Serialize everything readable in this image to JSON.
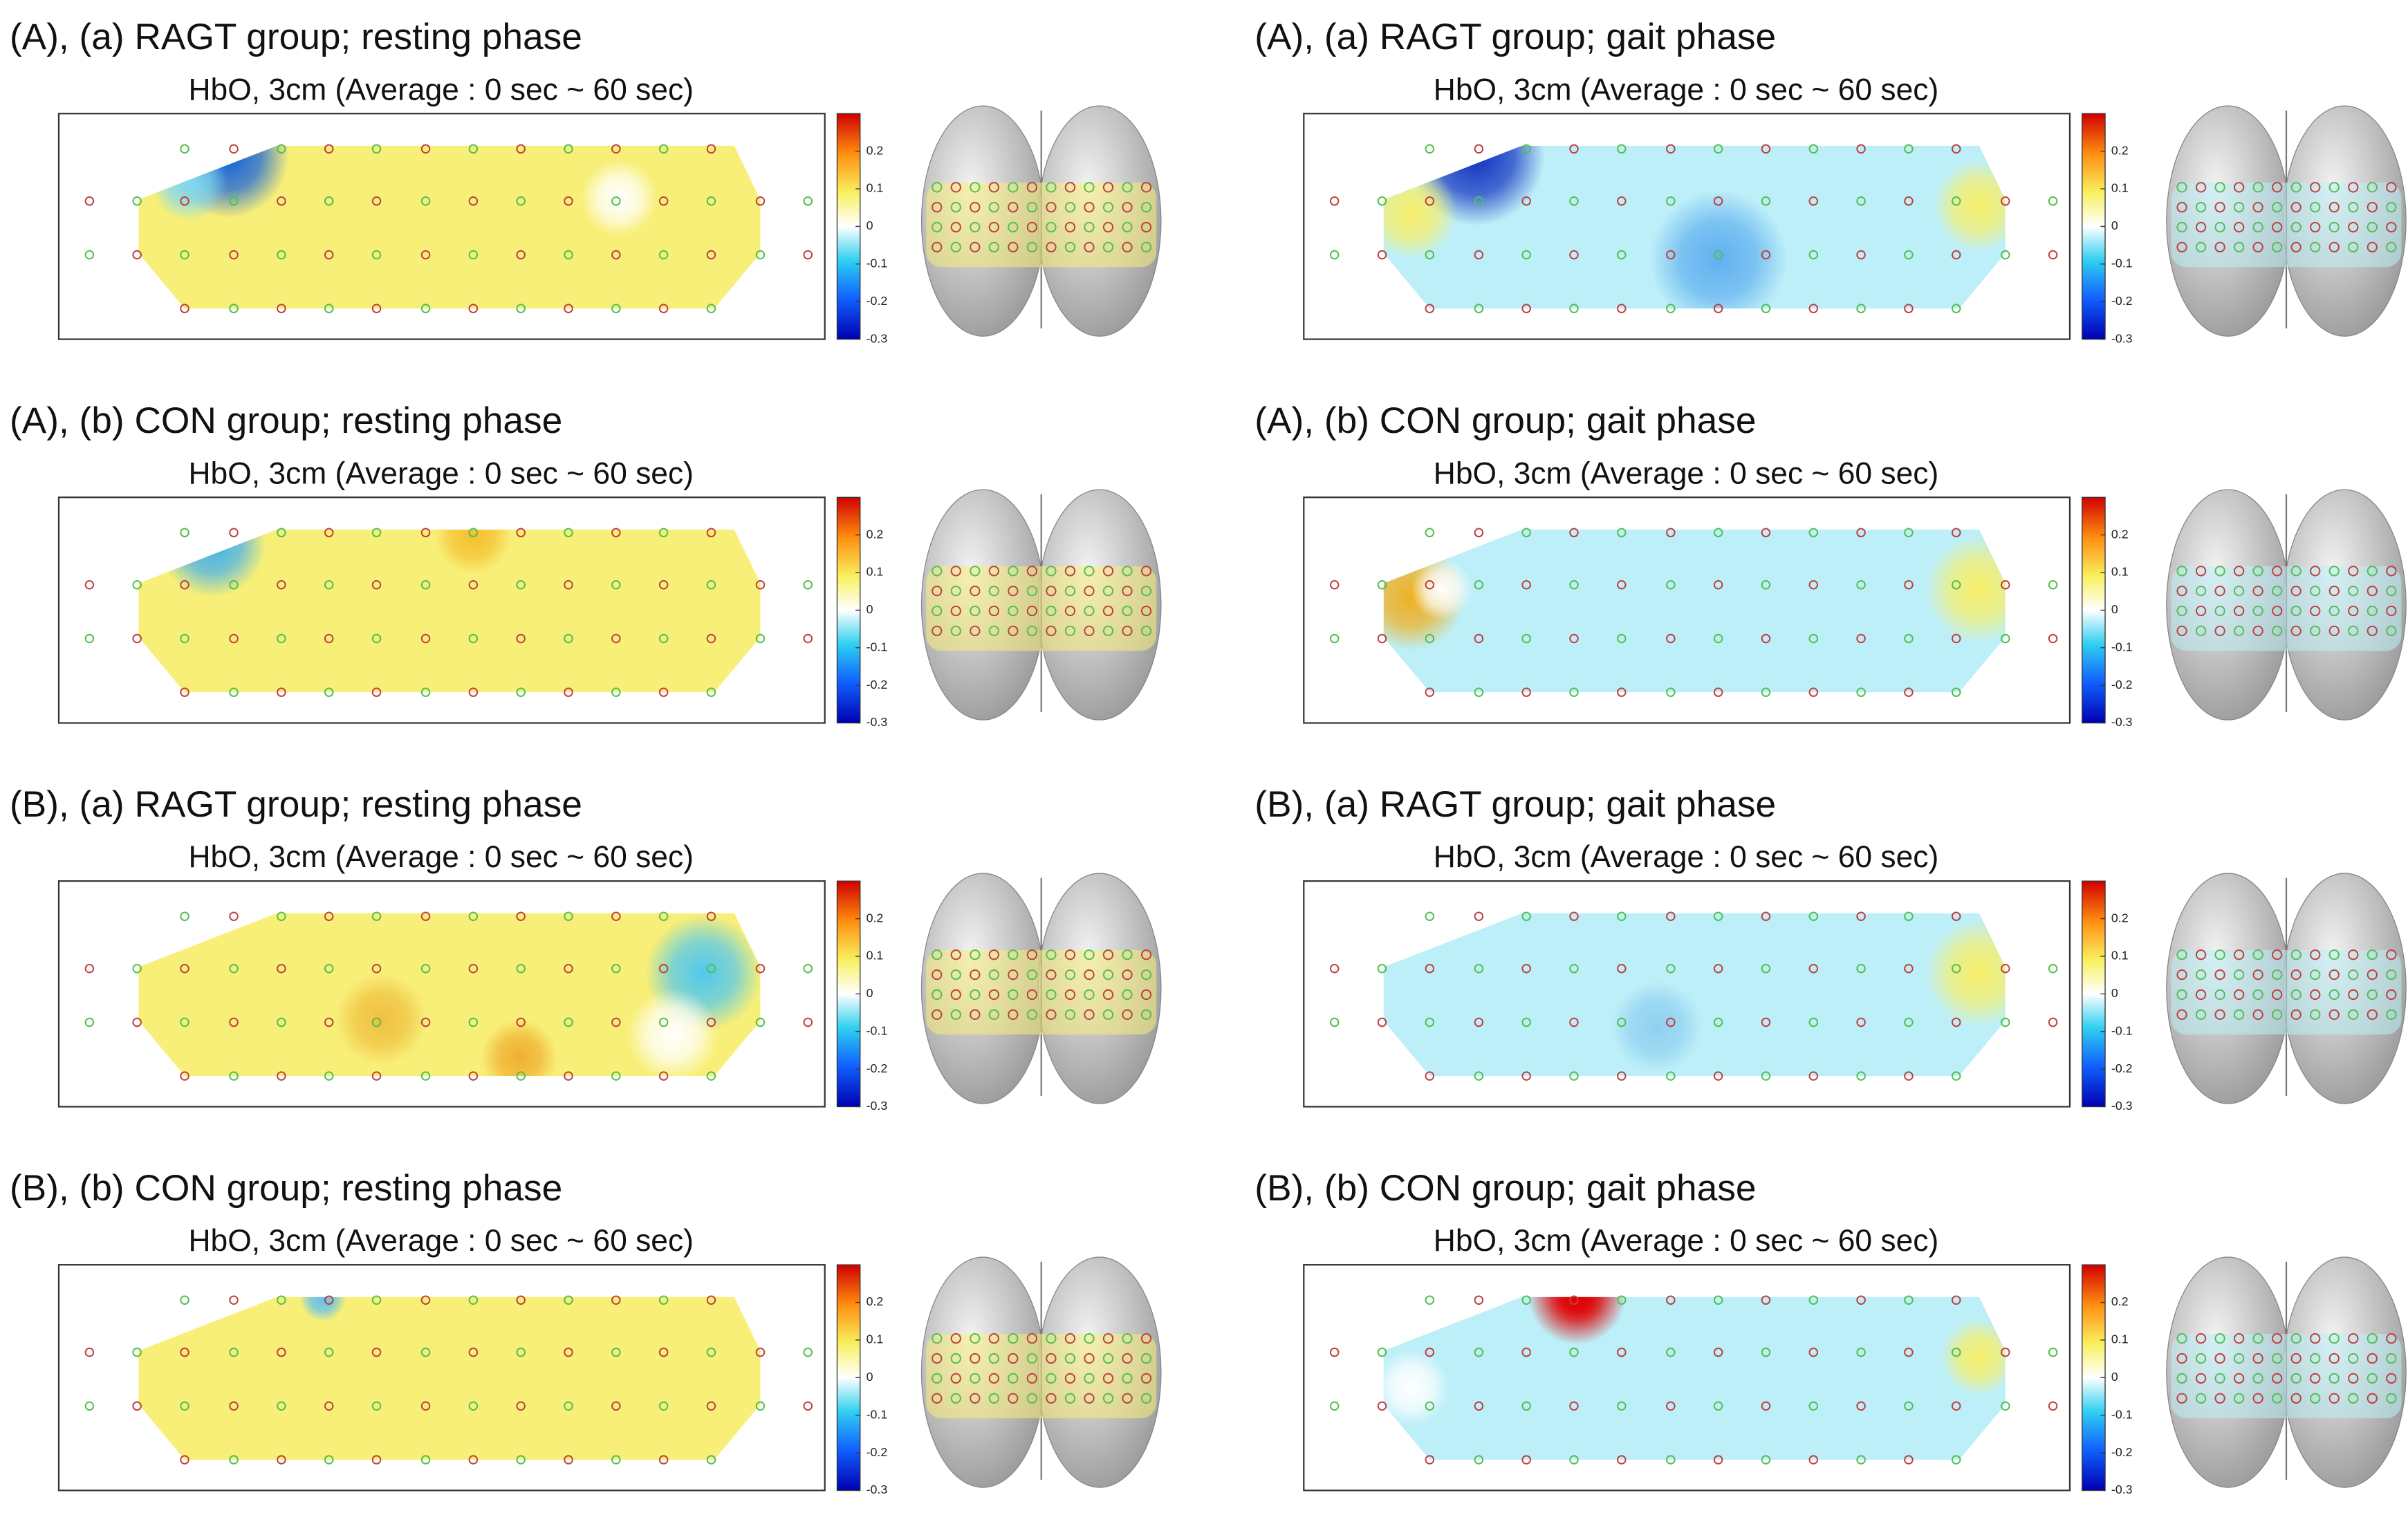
{
  "panels": [
    {
      "title": "(A), (a) RAGT group; resting phase",
      "subtitle": "HbO, 3cm (Average : 0 sec ~ 60 sec)",
      "color": "#f8ef78"
    },
    {
      "title": "(A), (b) CON group; resting phase",
      "subtitle": "HbO, 3cm (Average : 0 sec ~ 60 sec)",
      "color": "#f8ef78"
    },
    {
      "title": "(B), (a) RAGT group; resting phase",
      "subtitle": "HbO, 3cm (Average : 0 sec ~ 60 sec)",
      "color": "#f8ef78"
    },
    {
      "title": "(B), (b) CON group; resting phase",
      "subtitle": "HbO, 3cm (Average : 0 sec ~ 60 sec)",
      "color": "#f8ef78"
    },
    {
      "title": "(A), (a) RAGT group; gait phase",
      "subtitle": "HbO, 3cm (Average : 0 sec ~ 60 sec)",
      "color": "#bdeff8"
    },
    {
      "title": "(A), (b) CON group; gait phase",
      "subtitle": "HbO, 3cm (Average : 0 sec ~ 60 sec)",
      "color": "#bdeff8"
    },
    {
      "title": "(B), (a) RAGT group; gait phase",
      "subtitle": "HbO, 3cm (Average : 0 sec ~ 60 sec)",
      "color": "#bdeff8"
    },
    {
      "title": "(B), (b) CON group; gait phase",
      "subtitle": "HbO, 3cm (Average : 0 sec ~ 60 sec)",
      "color": "#bdeff8"
    }
  ],
  "colorbar": {
    "clim": [
      -0.3,
      0.3
    ],
    "ticks": [
      0.2,
      0.1,
      0,
      -0.1,
      -0.2,
      -0.3
    ]
  }
}
